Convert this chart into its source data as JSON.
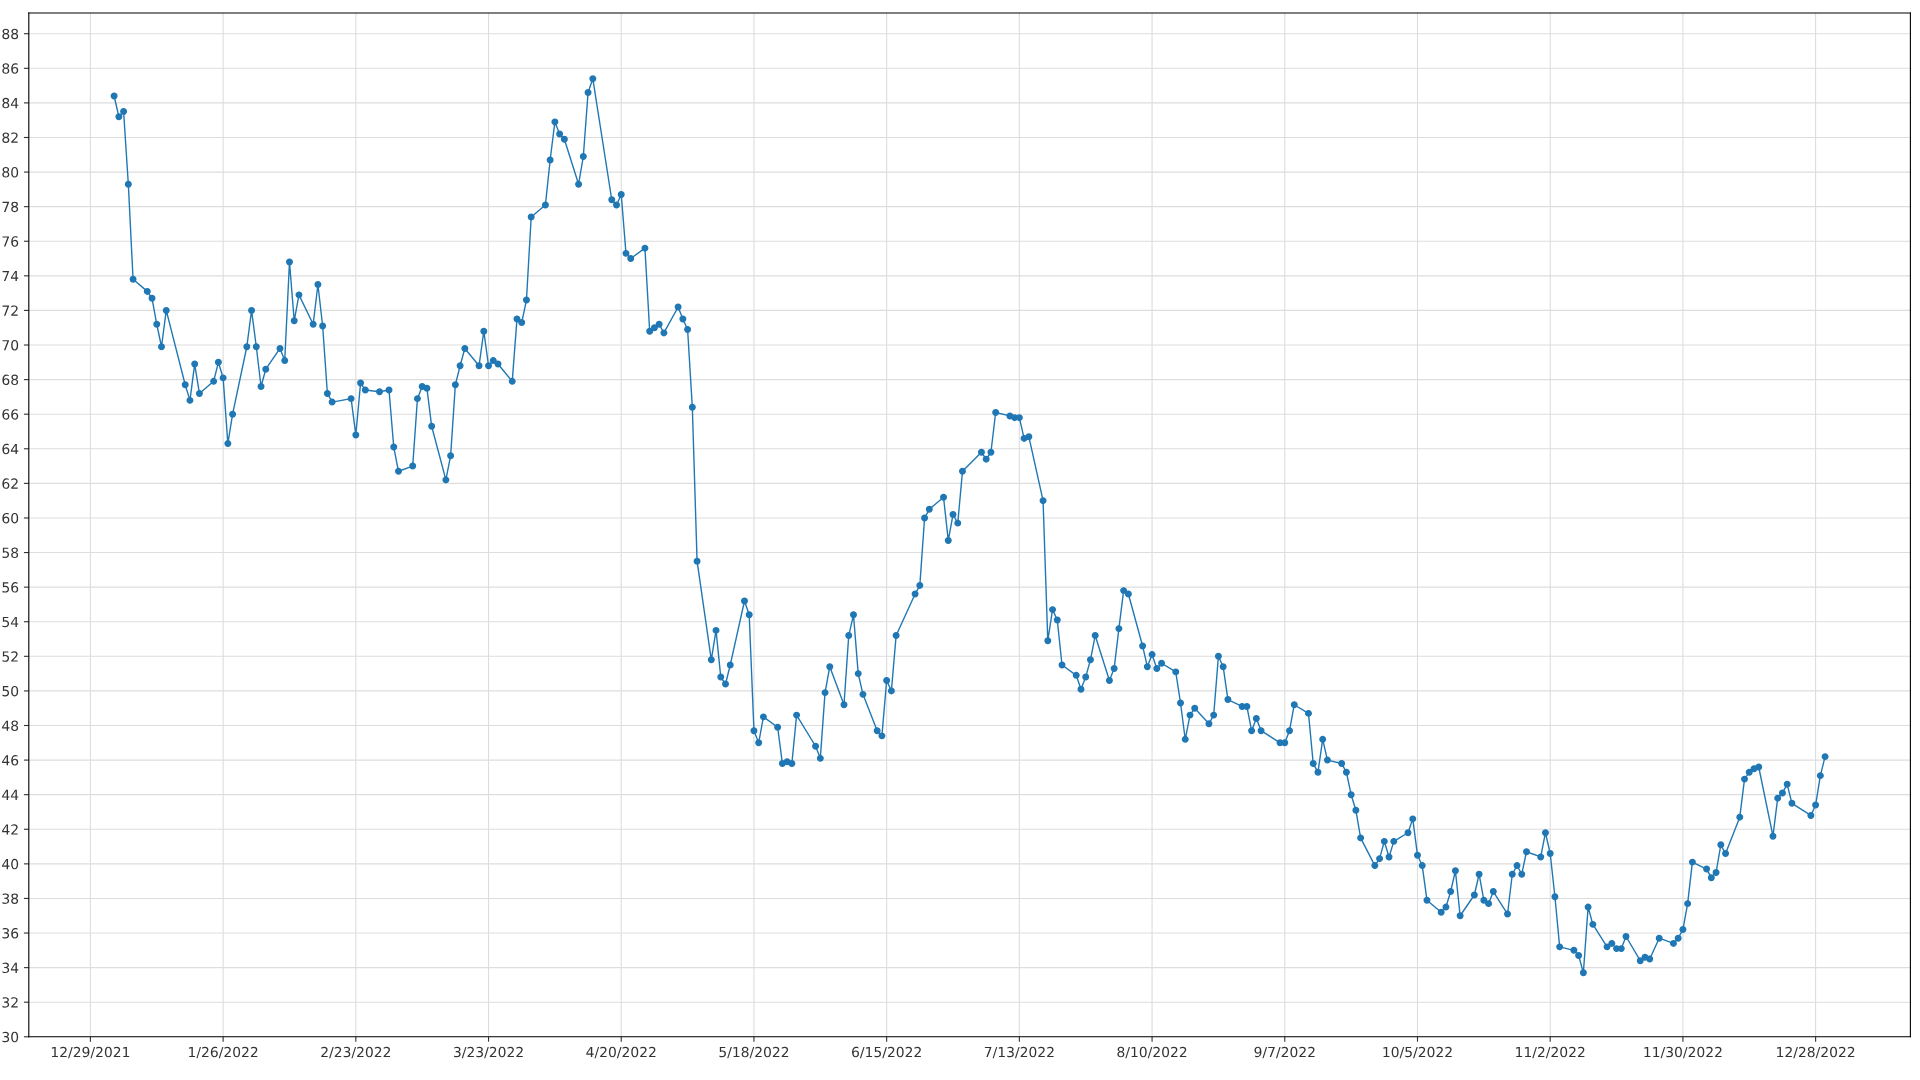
{
  "chart_data": {
    "type": "line",
    "color": "#1f77b4",
    "marker": "circle",
    "line_style": "solid",
    "grid": true,
    "xlim": [
      "2021-12-16",
      "2023-01-17"
    ],
    "ylim": [
      30,
      89.2
    ],
    "xticks": [
      {
        "value": "2021-12-29",
        "label": "12/29/2021"
      },
      {
        "value": "2022-01-26",
        "label": "1/26/2022"
      },
      {
        "value": "2022-02-23",
        "label": "2/23/2022"
      },
      {
        "value": "2022-03-23",
        "label": "3/23/2022"
      },
      {
        "value": "2022-04-20",
        "label": "4/20/2022"
      },
      {
        "value": "2022-05-18",
        "label": "5/18/2022"
      },
      {
        "value": "2022-06-15",
        "label": "6/15/2022"
      },
      {
        "value": "2022-07-13",
        "label": "7/13/2022"
      },
      {
        "value": "2022-08-10",
        "label": "8/10/2022"
      },
      {
        "value": "2022-09-07",
        "label": "9/7/2022"
      },
      {
        "value": "2022-10-05",
        "label": "10/5/2022"
      },
      {
        "value": "2022-11-02",
        "label": "11/2/2022"
      },
      {
        "value": "2022-11-30",
        "label": "11/30/2022"
      },
      {
        "value": "2022-12-28",
        "label": "12/28/2022"
      }
    ],
    "yticks": [
      30,
      32,
      34,
      36,
      38,
      40,
      42,
      44,
      46,
      48,
      50,
      52,
      54,
      56,
      58,
      60,
      62,
      64,
      66,
      68,
      70,
      72,
      74,
      76,
      78,
      80,
      82,
      84,
      86,
      88
    ],
    "x": [
      "2022-01-03",
      "2022-01-04",
      "2022-01-05",
      "2022-01-06",
      "2022-01-07",
      "2022-01-10",
      "2022-01-11",
      "2022-01-12",
      "2022-01-13",
      "2022-01-14",
      "2022-01-18",
      "2022-01-19",
      "2022-01-20",
      "2022-01-21",
      "2022-01-24",
      "2022-01-25",
      "2022-01-26",
      "2022-01-27",
      "2022-01-28",
      "2022-01-31",
      "2022-02-01",
      "2022-02-02",
      "2022-02-03",
      "2022-02-04",
      "2022-02-07",
      "2022-02-08",
      "2022-02-09",
      "2022-02-10",
      "2022-02-11",
      "2022-02-14",
      "2022-02-15",
      "2022-02-16",
      "2022-02-17",
      "2022-02-18",
      "2022-02-22",
      "2022-02-23",
      "2022-02-24",
      "2022-02-25",
      "2022-02-28",
      "2022-03-02",
      "2022-03-03",
      "2022-03-04",
      "2022-03-07",
      "2022-03-08",
      "2022-03-09",
      "2022-03-10",
      "2022-03-11",
      "2022-03-14",
      "2022-03-15",
      "2022-03-16",
      "2022-03-17",
      "2022-03-18",
      "2022-03-21",
      "2022-03-22",
      "2022-03-23",
      "2022-03-24",
      "2022-03-25",
      "2022-03-28",
      "2022-03-29",
      "2022-03-30",
      "2022-03-31",
      "2022-04-01",
      "2022-04-04",
      "2022-04-05",
      "2022-04-06",
      "2022-04-07",
      "2022-04-08",
      "2022-04-11",
      "2022-04-12",
      "2022-04-13",
      "2022-04-14",
      "2022-04-18",
      "2022-04-19",
      "2022-04-20",
      "2022-04-21",
      "2022-04-22",
      "2022-04-25",
      "2022-04-26",
      "2022-04-27",
      "2022-04-28",
      "2022-04-29",
      "2022-05-02",
      "2022-05-03",
      "2022-05-04",
      "2022-05-05",
      "2022-05-06",
      "2022-05-09",
      "2022-05-10",
      "2022-05-11",
      "2022-05-12",
      "2022-05-13",
      "2022-05-16",
      "2022-05-17",
      "2022-05-18",
      "2022-05-19",
      "2022-05-20",
      "2022-05-23",
      "2022-05-24",
      "2022-05-25",
      "2022-05-26",
      "2022-05-27",
      "2022-05-31",
      "2022-06-01",
      "2022-06-02",
      "2022-06-03",
      "2022-06-06",
      "2022-06-07",
      "2022-06-08",
      "2022-06-09",
      "2022-06-10",
      "2022-06-13",
      "2022-06-14",
      "2022-06-15",
      "2022-06-16",
      "2022-06-17",
      "2022-06-21",
      "2022-06-22",
      "2022-06-23",
      "2022-06-24",
      "2022-06-27",
      "2022-06-28",
      "2022-06-29",
      "2022-06-30",
      "2022-07-01",
      "2022-07-05",
      "2022-07-06",
      "2022-07-07",
      "2022-07-08",
      "2022-07-11",
      "2022-07-12",
      "2022-07-13",
      "2022-07-14",
      "2022-07-15",
      "2022-07-18",
      "2022-07-19",
      "2022-07-20",
      "2022-07-21",
      "2022-07-22",
      "2022-07-25",
      "2022-07-26",
      "2022-07-27",
      "2022-07-28",
      "2022-07-29",
      "2022-08-01",
      "2022-08-02",
      "2022-08-03",
      "2022-08-04",
      "2022-08-05",
      "2022-08-08",
      "2022-08-09",
      "2022-08-10",
      "2022-08-11",
      "2022-08-12",
      "2022-08-15",
      "2022-08-16",
      "2022-08-17",
      "2022-08-18",
      "2022-08-19",
      "2022-08-22",
      "2022-08-23",
      "2022-08-24",
      "2022-08-25",
      "2022-08-26",
      "2022-08-29",
      "2022-08-30",
      "2022-08-31",
      "2022-09-01",
      "2022-09-02",
      "2022-09-06",
      "2022-09-07",
      "2022-09-08",
      "2022-09-09",
      "2022-09-12",
      "2022-09-13",
      "2022-09-14",
      "2022-09-15",
      "2022-09-16",
      "2022-09-19",
      "2022-09-20",
      "2022-09-21",
      "2022-09-22",
      "2022-09-23",
      "2022-09-26",
      "2022-09-27",
      "2022-09-28",
      "2022-09-29",
      "2022-09-30",
      "2022-10-03",
      "2022-10-04",
      "2022-10-05",
      "2022-10-06",
      "2022-10-07",
      "2022-10-10",
      "2022-10-11",
      "2022-10-12",
      "2022-10-13",
      "2022-10-14",
      "2022-10-17",
      "2022-10-18",
      "2022-10-19",
      "2022-10-20",
      "2022-10-21",
      "2022-10-24",
      "2022-10-25",
      "2022-10-26",
      "2022-10-27",
      "2022-10-28",
      "2022-10-31",
      "2022-11-01",
      "2022-11-02",
      "2022-11-03",
      "2022-11-04",
      "2022-11-07",
      "2022-11-08",
      "2022-11-09",
      "2022-11-10",
      "2022-11-11",
      "2022-11-14",
      "2022-11-15",
      "2022-11-16",
      "2022-11-17",
      "2022-11-18",
      "2022-11-21",
      "2022-11-22",
      "2022-11-23",
      "2022-11-25",
      "2022-11-28",
      "2022-11-29",
      "2022-11-30",
      "2022-12-01",
      "2022-12-02",
      "2022-12-05",
      "2022-12-06",
      "2022-12-07",
      "2022-12-08",
      "2022-12-09",
      "2022-12-12",
      "2022-12-13",
      "2022-12-14",
      "2022-12-15",
      "2022-12-16",
      "2022-12-19",
      "2022-12-20",
      "2022-12-21",
      "2022-12-22",
      "2022-12-23",
      "2022-12-27",
      "2022-12-28",
      "2022-12-29",
      "2022-12-30"
    ],
    "values": [
      84.4,
      83.2,
      83.5,
      79.3,
      73.8,
      73.1,
      72.7,
      71.2,
      69.9,
      72.0,
      67.7,
      66.8,
      68.9,
      67.2,
      67.9,
      69.0,
      68.1,
      64.3,
      66.0,
      69.9,
      72.0,
      69.9,
      67.6,
      68.6,
      69.8,
      69.1,
      74.8,
      71.4,
      72.9,
      71.2,
      73.5,
      71.1,
      67.2,
      66.7,
      66.9,
      64.8,
      67.8,
      67.4,
      67.3,
      67.4,
      64.1,
      62.7,
      63.0,
      66.9,
      67.6,
      67.5,
      65.3,
      62.2,
      63.6,
      67.7,
      68.8,
      69.8,
      68.8,
      70.8,
      68.8,
      69.1,
      68.9,
      67.9,
      71.5,
      71.3,
      72.6,
      77.4,
      78.1,
      80.7,
      82.9,
      82.2,
      81.9,
      79.3,
      80.9,
      84.6,
      85.4,
      78.4,
      78.1,
      78.7,
      75.3,
      75.0,
      75.6,
      70.8,
      71.0,
      71.2,
      70.7,
      72.2,
      71.5,
      70.9,
      66.4,
      57.5,
      51.8,
      53.5,
      50.8,
      50.4,
      51.5,
      55.2,
      54.4,
      47.7,
      47.0,
      48.5,
      47.9,
      45.8,
      45.9,
      45.8,
      48.6,
      46.8,
      46.1,
      49.9,
      51.4,
      49.2,
      53.2,
      54.4,
      51.0,
      49.8,
      47.7,
      47.4,
      50.6,
      50.0,
      53.2,
      55.6,
      56.1,
      60.0,
      60.5,
      61.2,
      58.7,
      60.2,
      59.7,
      62.7,
      63.8,
      63.4,
      63.8,
      66.1,
      65.9,
      65.8,
      65.8,
      64.6,
      64.7,
      61.0,
      52.9,
      54.7,
      54.1,
      51.5,
      50.9,
      50.1,
      50.8,
      51.8,
      53.2,
      50.6,
      51.3,
      53.6,
      55.8,
      55.6,
      52.6,
      51.4,
      52.1,
      51.3,
      51.6,
      51.1,
      49.3,
      47.2,
      48.6,
      49.0,
      48.1,
      48.6,
      52.0,
      51.4,
      49.5,
      49.1,
      49.1,
      47.7,
      48.4,
      47.7,
      47.0,
      47.0,
      47.7,
      49.2,
      48.7,
      45.8,
      45.3,
      47.2,
      46.0,
      45.8,
      45.3,
      44.0,
      43.1,
      41.5,
      39.9,
      40.3,
      41.3,
      40.4,
      41.3,
      41.8,
      42.6,
      40.5,
      39.9,
      37.9,
      37.2,
      37.5,
      38.4,
      39.6,
      37.0,
      38.2,
      39.4,
      37.9,
      37.7,
      38.4,
      37.1,
      39.4,
      39.9,
      39.4,
      40.7,
      40.4,
      41.8,
      40.6,
      38.1,
      35.2,
      35.0,
      34.7,
      33.7,
      37.5,
      36.5,
      35.2,
      35.4,
      35.1,
      35.1,
      35.8,
      34.4,
      34.6,
      34.5,
      35.7,
      35.4,
      35.7,
      36.2,
      37.7,
      40.1,
      39.7,
      39.2,
      39.5,
      41.1,
      40.6,
      42.7,
      44.9,
      45.3,
      45.5,
      45.6,
      41.6,
      43.8,
      44.1,
      44.6,
      43.5,
      42.8,
      43.4,
      45.1,
      46.2
    ]
  }
}
